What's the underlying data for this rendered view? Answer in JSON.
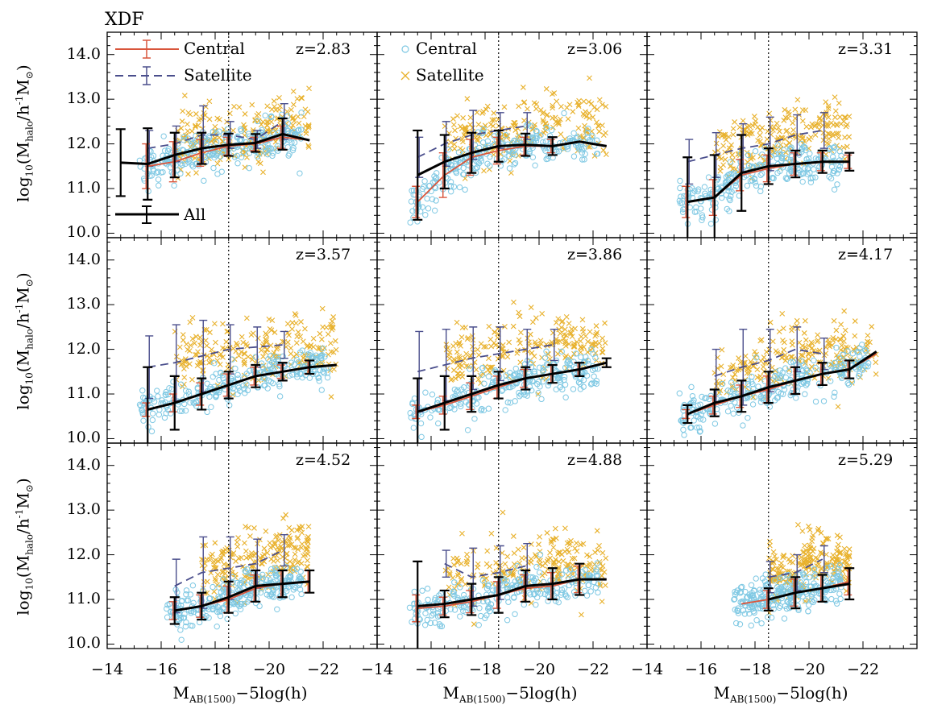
{
  "title": "XDF",
  "xlabel_main": "M",
  "xlabel_sub": "AB(1500)",
  "xlabel_tail": "−5log(h)",
  "ylabel_pre": "log",
  "ylabel_sub1": "10",
  "ylabel_mid": "(M",
  "ylabel_sub2": "halo",
  "ylabel_mid2": "/h",
  "ylabel_sup": "-1",
  "ylabel_tail": "M",
  "ylabel_sun": "⊙",
  "ylabel_close": ")",
  "legend": {
    "central_line": "Central",
    "satellite_line": "Satellite",
    "all_line": "All",
    "central_points": "Central",
    "satellite_points": "Satellite"
  },
  "colors": {
    "central": "#d9553b",
    "satellite": "#4a4e8c",
    "all": "#000000",
    "central_points": "#7ec8e3",
    "satellite_points": "#e8b12c"
  },
  "x_tick_labels": [
    "−14",
    "−16",
    "−18",
    "−20",
    "−22"
  ],
  "y_tick_labels": [
    "10.0",
    "11.0",
    "12.0",
    "13.0",
    "14.0"
  ],
  "chart_data": [
    {
      "type": "scatter",
      "z": "z=2.83",
      "xlim": [
        -14,
        -24
      ],
      "ylim": [
        9.9,
        14.5
      ],
      "xlabel": "M_AB(1500)-5log(h)",
      "ylabel": "log10(M_halo/h^-1 M_sun)",
      "vline": -18.5,
      "all": {
        "x": [
          -14.5,
          -15.5,
          -16.5,
          -17.5,
          -18.5,
          -19.5,
          -20.5,
          -21.5
        ],
        "y": [
          11.58,
          11.55,
          11.75,
          11.9,
          11.98,
          12.02,
          12.22,
          12.08
        ],
        "err": [
          0.75,
          0.8,
          0.5,
          0.35,
          0.25,
          0.2,
          0.35,
          0
        ]
      },
      "central": {
        "x": [
          -15.5,
          -16.5,
          -17.5,
          -18.5,
          -19.5,
          -20.5,
          -21.5
        ],
        "y": [
          11.5,
          11.6,
          11.8,
          11.95,
          12.0,
          12.15,
          12.08
        ],
        "err": [
          0.5,
          0.45,
          0.3,
          0.2,
          0.15,
          0.25,
          0
        ]
      },
      "satellite": {
        "x": [
          -15.5,
          -16.5,
          -17.5,
          -18.5,
          -19.5,
          -20.5
        ],
        "y": [
          11.9,
          12.0,
          12.2,
          12.2,
          12.1,
          12.5
        ],
        "err": [
          0.4,
          0.4,
          0.65,
          0.3,
          0.2,
          0.4
        ]
      }
    },
    {
      "type": "scatter",
      "z": "z=3.06",
      "xlim": [
        -14,
        -24
      ],
      "ylim": [
        9.9,
        14.5
      ],
      "vline": -18.5,
      "all": {
        "x": [
          -15.5,
          -16.5,
          -17.5,
          -18.5,
          -19.5,
          -20.5,
          -21.5,
          -22.5
        ],
        "y": [
          11.3,
          11.6,
          11.8,
          11.95,
          11.98,
          11.95,
          12.05,
          11.95
        ],
        "err": [
          1.0,
          0.6,
          0.45,
          0.35,
          0.25,
          0.2,
          0,
          0
        ]
      },
      "central": {
        "x": [
          -15.5,
          -16.5,
          -17.5,
          -18.5,
          -19.5,
          -20.5,
          -21.5,
          -22.5
        ],
        "y": [
          10.7,
          11.3,
          11.7,
          11.85,
          11.95,
          11.95,
          12.05,
          11.95
        ],
        "err": [
          0.35,
          0.5,
          0.4,
          0.3,
          0.2,
          0.15,
          0,
          0
        ]
      },
      "satellite": {
        "x": [
          -15.5,
          -16.5,
          -17.5,
          -18.5,
          -19.5
        ],
        "y": [
          11.7,
          12.0,
          12.2,
          12.3,
          12.4
        ],
        "err": [
          0.45,
          0.5,
          0.55,
          0.4,
          0.3
        ]
      }
    },
    {
      "type": "scatter",
      "z": "z=3.31",
      "xlim": [
        -14,
        -24
      ],
      "ylim": [
        9.9,
        14.5
      ],
      "vline": -18.5,
      "all": {
        "x": [
          -15.5,
          -16.5,
          -17.5,
          -18.5,
          -19.5,
          -20.5,
          -21.5
        ],
        "y": [
          10.7,
          10.8,
          11.35,
          11.5,
          11.55,
          11.6,
          11.6
        ],
        "err": [
          1.0,
          0.95,
          0.85,
          0.4,
          0.3,
          0.25,
          0.2
        ]
      },
      "central": {
        "x": [
          -15.5,
          -16.5,
          -17.5,
          -18.5,
          -19.5,
          -20.5,
          -21.5
        ],
        "y": [
          10.7,
          10.8,
          11.3,
          11.45,
          11.55,
          11.6,
          11.6
        ],
        "err": [
          0.35,
          0.4,
          0.35,
          0.3,
          0.25,
          0.2,
          0.15
        ]
      },
      "satellite": {
        "x": [
          -15.5,
          -16.5,
          -17.5,
          -18.5,
          -19.5,
          -20.5
        ],
        "y": [
          11.6,
          11.75,
          11.9,
          12.0,
          12.2,
          12.3
        ],
        "err": [
          0.5,
          0.5,
          0.55,
          0.6,
          0.45,
          0.4
        ]
      }
    },
    {
      "type": "scatter",
      "z": "z=3.57",
      "xlim": [
        -14,
        -24
      ],
      "ylim": [
        9.9,
        14.5
      ],
      "vline": -18.5,
      "all": {
        "x": [
          -15.5,
          -16.5,
          -17.5,
          -18.5,
          -19.5,
          -20.5,
          -21.5,
          -22.5
        ],
        "y": [
          10.65,
          10.8,
          11.0,
          11.2,
          11.4,
          11.5,
          11.6,
          11.65
        ],
        "err": [
          0.95,
          0.6,
          0.35,
          0.3,
          0.25,
          0.2,
          0.15,
          0
        ]
      },
      "central": {
        "x": [
          -15.5,
          -16.5,
          -17.5,
          -18.5,
          -19.5,
          -20.5,
          -21.5,
          -22.5
        ],
        "y": [
          10.65,
          10.8,
          11.0,
          11.2,
          11.4,
          11.5,
          11.6,
          11.65
        ],
        "err": [
          0.15,
          0.2,
          0.25,
          0.25,
          0.2,
          0.15,
          0.15,
          0
        ]
      },
      "satellite": {
        "x": [
          -15.5,
          -16.5,
          -17.5,
          -18.5,
          -19.5,
          -20.5
        ],
        "y": [
          11.6,
          11.7,
          11.85,
          12.0,
          12.05,
          12.1
        ],
        "err": [
          0.7,
          0.85,
          0.8,
          0.55,
          0.45,
          0.3
        ]
      }
    },
    {
      "type": "scatter",
      "z": "z=3.86",
      "xlim": [
        -14,
        -24
      ],
      "ylim": [
        9.9,
        14.5
      ],
      "vline": -18.5,
      "all": {
        "x": [
          -15.5,
          -16.5,
          -17.5,
          -18.5,
          -19.5,
          -20.5,
          -21.5,
          -22.5
        ],
        "y": [
          10.6,
          10.8,
          11.0,
          11.2,
          11.35,
          11.45,
          11.55,
          11.7
        ],
        "err": [
          0.75,
          0.6,
          0.4,
          0.3,
          0.25,
          0.2,
          0.15,
          0.1
        ]
      },
      "central": {
        "x": [
          -15.5,
          -16.5,
          -17.5,
          -18.5,
          -19.5,
          -20.5,
          -21.5,
          -22.5
        ],
        "y": [
          10.6,
          10.75,
          10.95,
          11.15,
          11.35,
          11.45,
          11.55,
          11.7
        ],
        "err": [
          0.15,
          0.2,
          0.3,
          0.25,
          0.2,
          0.2,
          0.15,
          0
        ]
      },
      "satellite": {
        "x": [
          -15.5,
          -16.5,
          -17.5,
          -18.5,
          -19.5,
          -20.5
        ],
        "y": [
          11.5,
          11.65,
          11.8,
          11.9,
          12.0,
          12.1
        ],
        "err": [
          0.9,
          0.8,
          0.7,
          0.6,
          0.45,
          0.35
        ]
      }
    },
    {
      "type": "scatter",
      "z": "z=4.17",
      "xlim": [
        -14,
        -24
      ],
      "ylim": [
        9.9,
        14.5
      ],
      "vline": -18.5,
      "all": {
        "x": [
          -15.5,
          -16.5,
          -17.5,
          -18.5,
          -19.5,
          -20.5,
          -21.5,
          -22.5
        ],
        "y": [
          10.55,
          10.8,
          10.95,
          11.15,
          11.3,
          11.45,
          11.55,
          11.95
        ],
        "err": [
          0.2,
          0.3,
          0.35,
          0.35,
          0.3,
          0.25,
          0.2,
          0
        ]
      },
      "central": {
        "x": [
          -15.5,
          -16.5,
          -17.5,
          -18.5,
          -19.5,
          -20.5,
          -21.5,
          -22.5
        ],
        "y": [
          10.55,
          10.75,
          10.95,
          11.1,
          11.3,
          11.45,
          11.55,
          11.9
        ],
        "err": [
          0.1,
          0.2,
          0.25,
          0.3,
          0.3,
          0.25,
          0.2,
          0
        ]
      },
      "satellite": {
        "x": [
          -16.5,
          -17.5,
          -18.5,
          -19.5,
          -20.5
        ],
        "y": [
          11.4,
          11.6,
          11.75,
          12.0,
          11.9
        ],
        "err": [
          0.6,
          0.85,
          0.7,
          0.5,
          0.35
        ]
      }
    },
    {
      "type": "scatter",
      "z": "z=4.52",
      "xlim": [
        -14,
        -24
      ],
      "ylim": [
        9.9,
        14.5
      ],
      "vline": -18.5,
      "all": {
        "x": [
          -16.5,
          -17.5,
          -18.5,
          -19.5,
          -20.5,
          -21.5
        ],
        "y": [
          10.75,
          10.85,
          11.05,
          11.3,
          11.35,
          11.4
        ],
        "err": [
          0.3,
          0.3,
          0.35,
          0.35,
          0.3,
          0.25
        ]
      },
      "central": {
        "x": [
          -16.5,
          -17.5,
          -18.5,
          -19.5,
          -20.5,
          -21.5
        ],
        "y": [
          10.75,
          10.85,
          11.0,
          11.25,
          11.35,
          11.4
        ],
        "err": [
          0.2,
          0.25,
          0.3,
          0.3,
          0.3,
          0.25
        ]
      },
      "satellite": {
        "x": [
          -16.5,
          -17.5,
          -18.5,
          -19.5,
          -20.5
        ],
        "y": [
          11.3,
          11.6,
          11.7,
          11.8,
          12.1
        ],
        "err": [
          0.6,
          0.8,
          0.7,
          0.55,
          0.35
        ]
      }
    },
    {
      "type": "scatter",
      "z": "z=4.88",
      "xlim": [
        -14,
        -24
      ],
      "ylim": [
        9.9,
        14.5
      ],
      "vline": -18.5,
      "all": {
        "x": [
          -15.5,
          -16.5,
          -17.5,
          -18.5,
          -19.5,
          -20.5,
          -21.5,
          -22.5
        ],
        "y": [
          10.85,
          10.9,
          11.0,
          11.1,
          11.3,
          11.35,
          11.45,
          11.45
        ],
        "err": [
          1.0,
          0.3,
          0.35,
          0.4,
          0.35,
          0.35,
          0.35,
          0
        ]
      },
      "central": {
        "x": [
          -15.5,
          -16.5,
          -17.5,
          -18.5,
          -19.5,
          -20.5,
          -21.5,
          -22.5
        ],
        "y": [
          10.8,
          10.85,
          10.95,
          11.1,
          11.25,
          11.3,
          11.45,
          11.45
        ],
        "err": [
          0.3,
          0.2,
          0.25,
          0.3,
          0.3,
          0.3,
          0.3,
          0
        ]
      },
      "satellite": {
        "x": [
          -16.5,
          -17.5,
          -18.5,
          -19.5
        ],
        "y": [
          11.8,
          11.5,
          11.6,
          11.75
        ],
        "err": [
          0.3,
          0.65,
          0.6,
          0.5
        ]
      }
    },
    {
      "type": "scatter",
      "z": "z=5.29",
      "xlim": [
        -14,
        -24
      ],
      "ylim": [
        9.9,
        14.5
      ],
      "vline": -18.5,
      "all": {
        "x": [
          -18.5,
          -19.5,
          -20.5,
          -21.5
        ],
        "y": [
          11.0,
          11.15,
          11.25,
          11.35
        ],
        "err": [
          0.25,
          0.35,
          0.3,
          0.35
        ]
      },
      "central": {
        "x": [
          -17.5,
          -18.5,
          -19.5,
          -20.5,
          -21.5
        ],
        "y": [
          10.9,
          11.0,
          11.15,
          11.25,
          11.4
        ],
        "err": [
          0,
          0.2,
          0.3,
          0.3,
          0.3
        ]
      },
      "satellite": {
        "x": [
          -18.5,
          -19.5,
          -20.5
        ],
        "y": [
          11.5,
          11.6,
          11.9
        ],
        "err": [
          0.35,
          0.4,
          0.3
        ]
      }
    }
  ]
}
